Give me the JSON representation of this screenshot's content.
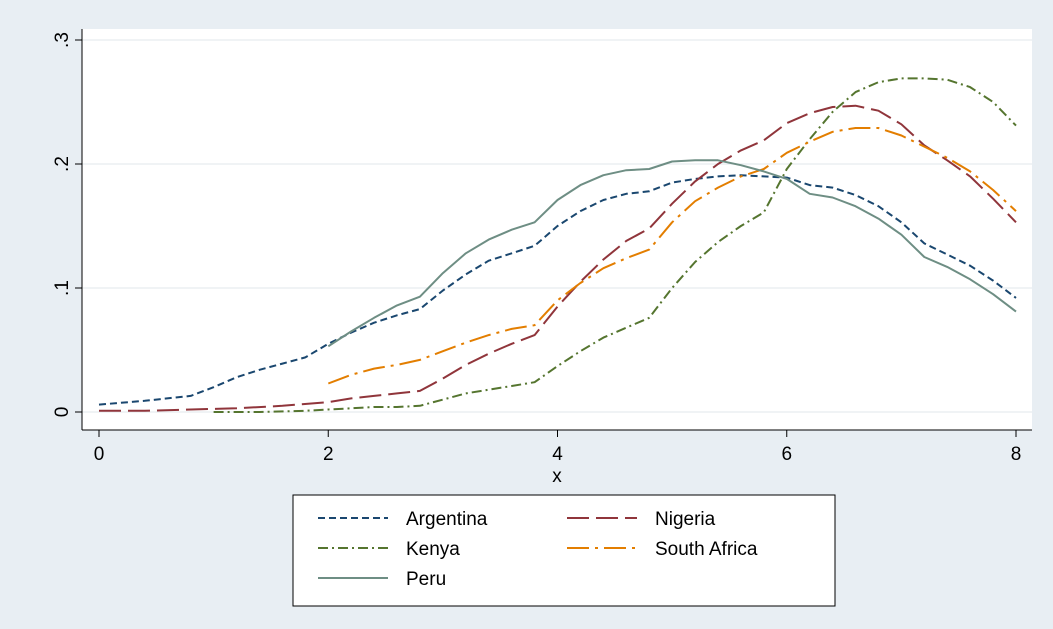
{
  "chart_data": {
    "type": "line",
    "title": "",
    "xlabel": "x",
    "ylabel": "",
    "xlim": [
      0,
      8
    ],
    "ylim": [
      0,
      0.3
    ],
    "x_ticks": [
      0,
      2,
      4,
      6,
      8
    ],
    "x_tick_labels": [
      "0",
      "2",
      "4",
      "6",
      "8"
    ],
    "y_ticks": [
      0,
      0.1,
      0.2,
      0.3
    ],
    "y_tick_labels": [
      "0",
      ".1",
      ".2",
      ".3"
    ],
    "grid": "horizontal",
    "legend_position": "bottom",
    "series": [
      {
        "name": "Argentina",
        "color": "#1a476f",
        "dash": "short-dash",
        "points": [
          [
            0,
            0.006
          ],
          [
            0.4,
            0.009
          ],
          [
            0.8,
            0.013
          ],
          [
            1.0,
            0.02
          ],
          [
            1.2,
            0.028
          ],
          [
            1.4,
            0.034
          ],
          [
            1.6,
            0.039
          ],
          [
            1.8,
            0.044
          ],
          [
            2.0,
            0.055
          ],
          [
            2.2,
            0.064
          ],
          [
            2.4,
            0.072
          ],
          [
            2.6,
            0.078
          ],
          [
            2.8,
            0.083
          ],
          [
            3.0,
            0.098
          ],
          [
            3.2,
            0.111
          ],
          [
            3.4,
            0.122
          ],
          [
            3.6,
            0.128
          ],
          [
            3.8,
            0.134
          ],
          [
            4.0,
            0.15
          ],
          [
            4.2,
            0.162
          ],
          [
            4.4,
            0.171
          ],
          [
            4.6,
            0.176
          ],
          [
            4.8,
            0.178
          ],
          [
            5.0,
            0.185
          ],
          [
            5.2,
            0.188
          ],
          [
            5.4,
            0.19
          ],
          [
            5.6,
            0.191
          ],
          [
            5.8,
            0.19
          ],
          [
            6.0,
            0.189
          ],
          [
            6.2,
            0.183
          ],
          [
            6.4,
            0.181
          ],
          [
            6.6,
            0.175
          ],
          [
            6.8,
            0.166
          ],
          [
            7.0,
            0.153
          ],
          [
            7.2,
            0.136
          ],
          [
            7.4,
            0.127
          ],
          [
            7.6,
            0.118
          ],
          [
            7.8,
            0.106
          ],
          [
            8.0,
            0.092
          ]
        ]
      },
      {
        "name": "Nigeria",
        "color": "#90353b",
        "dash": "long-dash",
        "points": [
          [
            0,
            0.001
          ],
          [
            0.4,
            0.001
          ],
          [
            0.8,
            0.002
          ],
          [
            1.2,
            0.003
          ],
          [
            1.6,
            0.005
          ],
          [
            2.0,
            0.008
          ],
          [
            2.2,
            0.011
          ],
          [
            2.4,
            0.013
          ],
          [
            2.6,
            0.015
          ],
          [
            2.8,
            0.017
          ],
          [
            3.0,
            0.027
          ],
          [
            3.2,
            0.038
          ],
          [
            3.4,
            0.047
          ],
          [
            3.6,
            0.055
          ],
          [
            3.8,
            0.062
          ],
          [
            4.0,
            0.085
          ],
          [
            4.2,
            0.105
          ],
          [
            4.4,
            0.123
          ],
          [
            4.6,
            0.138
          ],
          [
            4.8,
            0.148
          ],
          [
            5.0,
            0.168
          ],
          [
            5.2,
            0.186
          ],
          [
            5.4,
            0.2
          ],
          [
            5.6,
            0.211
          ],
          [
            5.8,
            0.219
          ],
          [
            6.0,
            0.233
          ],
          [
            6.2,
            0.241
          ],
          [
            6.4,
            0.246
          ],
          [
            6.6,
            0.247
          ],
          [
            6.8,
            0.243
          ],
          [
            7.0,
            0.232
          ],
          [
            7.2,
            0.215
          ],
          [
            7.4,
            0.203
          ],
          [
            7.6,
            0.19
          ],
          [
            7.8,
            0.172
          ],
          [
            8.0,
            0.153
          ]
        ]
      },
      {
        "name": "Kenya",
        "color": "#55752f",
        "dash": "dash-dot",
        "points": [
          [
            1.0,
            0.0
          ],
          [
            1.4,
            0.0
          ],
          [
            1.8,
            0.001
          ],
          [
            2.0,
            0.002
          ],
          [
            2.2,
            0.003
          ],
          [
            2.4,
            0.004
          ],
          [
            2.6,
            0.004
          ],
          [
            2.8,
            0.005
          ],
          [
            3.0,
            0.01
          ],
          [
            3.2,
            0.015
          ],
          [
            3.4,
            0.018
          ],
          [
            3.6,
            0.021
          ],
          [
            3.8,
            0.024
          ],
          [
            4.0,
            0.037
          ],
          [
            4.2,
            0.049
          ],
          [
            4.4,
            0.06
          ],
          [
            4.6,
            0.068
          ],
          [
            4.8,
            0.076
          ],
          [
            5.0,
            0.1
          ],
          [
            5.2,
            0.121
          ],
          [
            5.4,
            0.137
          ],
          [
            5.6,
            0.15
          ],
          [
            5.8,
            0.161
          ],
          [
            6.0,
            0.196
          ],
          [
            6.2,
            0.22
          ],
          [
            6.4,
            0.242
          ],
          [
            6.6,
            0.258
          ],
          [
            6.8,
            0.266
          ],
          [
            7.0,
            0.269
          ],
          [
            7.2,
            0.269
          ],
          [
            7.4,
            0.268
          ],
          [
            7.6,
            0.262
          ],
          [
            7.8,
            0.25
          ],
          [
            8.0,
            0.231
          ]
        ]
      },
      {
        "name": "South Africa",
        "color": "#e37e00",
        "dash": "long-dash-dot",
        "points": [
          [
            2.0,
            0.023
          ],
          [
            2.2,
            0.03
          ],
          [
            2.4,
            0.035
          ],
          [
            2.6,
            0.038
          ],
          [
            2.8,
            0.042
          ],
          [
            3.0,
            0.049
          ],
          [
            3.2,
            0.056
          ],
          [
            3.4,
            0.062
          ],
          [
            3.6,
            0.067
          ],
          [
            3.8,
            0.07
          ],
          [
            4.0,
            0.09
          ],
          [
            4.2,
            0.104
          ],
          [
            4.4,
            0.116
          ],
          [
            4.6,
            0.124
          ],
          [
            4.8,
            0.131
          ],
          [
            5.0,
            0.153
          ],
          [
            5.2,
            0.17
          ],
          [
            5.4,
            0.181
          ],
          [
            5.6,
            0.19
          ],
          [
            5.8,
            0.196
          ],
          [
            6.0,
            0.209
          ],
          [
            6.2,
            0.218
          ],
          [
            6.4,
            0.226
          ],
          [
            6.6,
            0.229
          ],
          [
            6.8,
            0.229
          ],
          [
            7.0,
            0.223
          ],
          [
            7.2,
            0.214
          ],
          [
            7.4,
            0.205
          ],
          [
            7.6,
            0.194
          ],
          [
            7.8,
            0.179
          ],
          [
            8.0,
            0.162
          ]
        ]
      },
      {
        "name": "Peru",
        "color": "#6e8e84",
        "dash": "solid",
        "points": [
          [
            2.0,
            0.053
          ],
          [
            2.2,
            0.065
          ],
          [
            2.4,
            0.076
          ],
          [
            2.6,
            0.086
          ],
          [
            2.8,
            0.093
          ],
          [
            3.0,
            0.112
          ],
          [
            3.2,
            0.128
          ],
          [
            3.4,
            0.139
          ],
          [
            3.6,
            0.147
          ],
          [
            3.8,
            0.153
          ],
          [
            4.0,
            0.171
          ],
          [
            4.2,
            0.183
          ],
          [
            4.4,
            0.191
          ],
          [
            4.6,
            0.195
          ],
          [
            4.8,
            0.196
          ],
          [
            5.0,
            0.202
          ],
          [
            5.2,
            0.203
          ],
          [
            5.4,
            0.203
          ],
          [
            5.6,
            0.199
          ],
          [
            5.8,
            0.194
          ],
          [
            6.0,
            0.188
          ],
          [
            6.2,
            0.176
          ],
          [
            6.4,
            0.173
          ],
          [
            6.6,
            0.166
          ],
          [
            6.8,
            0.156
          ],
          [
            7.0,
            0.143
          ],
          [
            7.2,
            0.125
          ],
          [
            7.4,
            0.117
          ],
          [
            7.6,
            0.107
          ],
          [
            7.8,
            0.095
          ],
          [
            8.0,
            0.081
          ]
        ]
      }
    ],
    "legend_rows": [
      [
        "Argentina",
        "Nigeria"
      ],
      [
        "Kenya",
        "South Africa"
      ],
      [
        "Peru"
      ]
    ]
  }
}
